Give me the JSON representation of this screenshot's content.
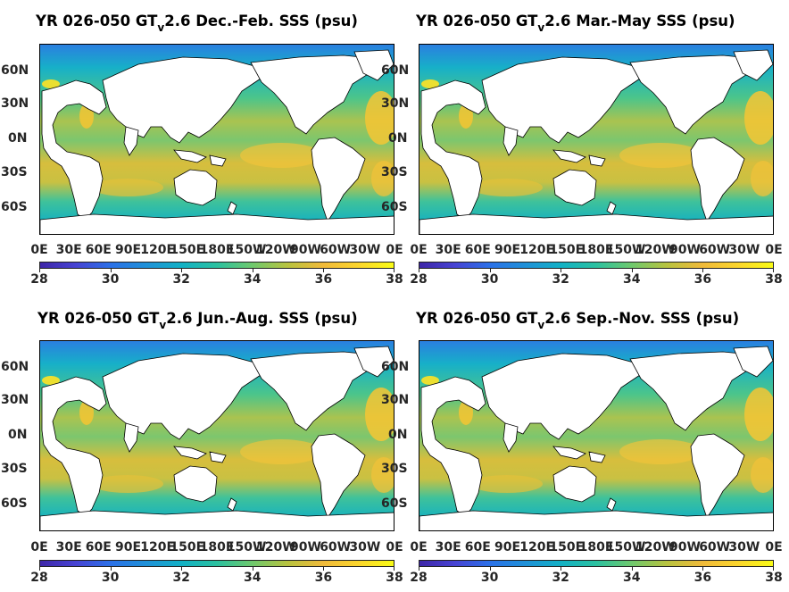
{
  "colors": {
    "low": "#3e26a8",
    "mid": "#1fb8b8",
    "high": "#f9fb15",
    "land": "#ffffff",
    "coast": "#000000"
  },
  "lat_labels": [
    "60N",
    "30N",
    "0N",
    "30S",
    "60S"
  ],
  "lon_labels": [
    "0E",
    "30E",
    "60E",
    "90E",
    "120E",
    "150E",
    "180E",
    "150W",
    "120W",
    "90W",
    "60W",
    "30W",
    "0E"
  ],
  "colorbar": {
    "ticks": [
      "28",
      "30",
      "32",
      "34",
      "36",
      "38"
    ],
    "min": 28,
    "max": 38
  },
  "panels": [
    {
      "title_pre": "YR 026-050 GT",
      "title_sub": "v",
      "title_post": "2.6 Dec.-Feb. SSS (psu)"
    },
    {
      "title_pre": "YR 026-050 GT",
      "title_sub": "v",
      "title_post": "2.6 Mar.-May SSS (psu)"
    },
    {
      "title_pre": "YR 026-050 GT",
      "title_sub": "v",
      "title_post": "2.6 Jun.-Aug. SSS (psu)"
    },
    {
      "title_pre": "YR 026-050 GT",
      "title_sub": "v",
      "title_post": "2.6 Sep.-Nov. SSS (psu)"
    }
  ]
}
